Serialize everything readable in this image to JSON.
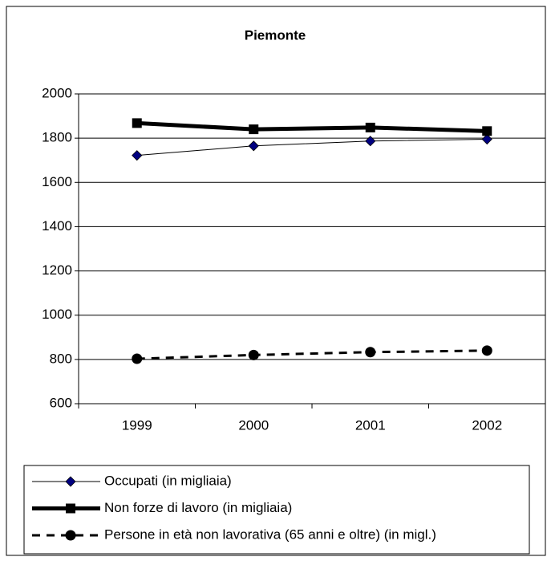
{
  "chart_data": {
    "type": "line",
    "title": "Piemonte",
    "categories": [
      "1999",
      "2000",
      "2001",
      "2002"
    ],
    "series": [
      {
        "name": "Occupati (in migliaia)",
        "color": "#000000",
        "marker_color": "#000080",
        "marker": "diamond",
        "line_width": 1,
        "dashed": false,
        "values": [
          1722,
          1765,
          1787,
          1795
        ]
      },
      {
        "name": "Non forze di lavoro (in migliaia)",
        "color": "#000000",
        "marker_color": "#000000",
        "marker": "square",
        "line_width": 5,
        "dashed": false,
        "values": [
          1868,
          1840,
          1848,
          1832
        ]
      },
      {
        "name": "Persone in età non lavorativa (65 anni e oltre) (in migl.)",
        "color": "#000000",
        "marker_color": "#000000",
        "marker": "circle",
        "line_width": 3,
        "dashed": true,
        "values": [
          803,
          820,
          833,
          840
        ]
      }
    ],
    "ylim": [
      600,
      2000
    ],
    "yticks": [
      600,
      800,
      1000,
      1200,
      1400,
      1600,
      1800,
      2000
    ],
    "grid": true,
    "legend": "bottom"
  }
}
